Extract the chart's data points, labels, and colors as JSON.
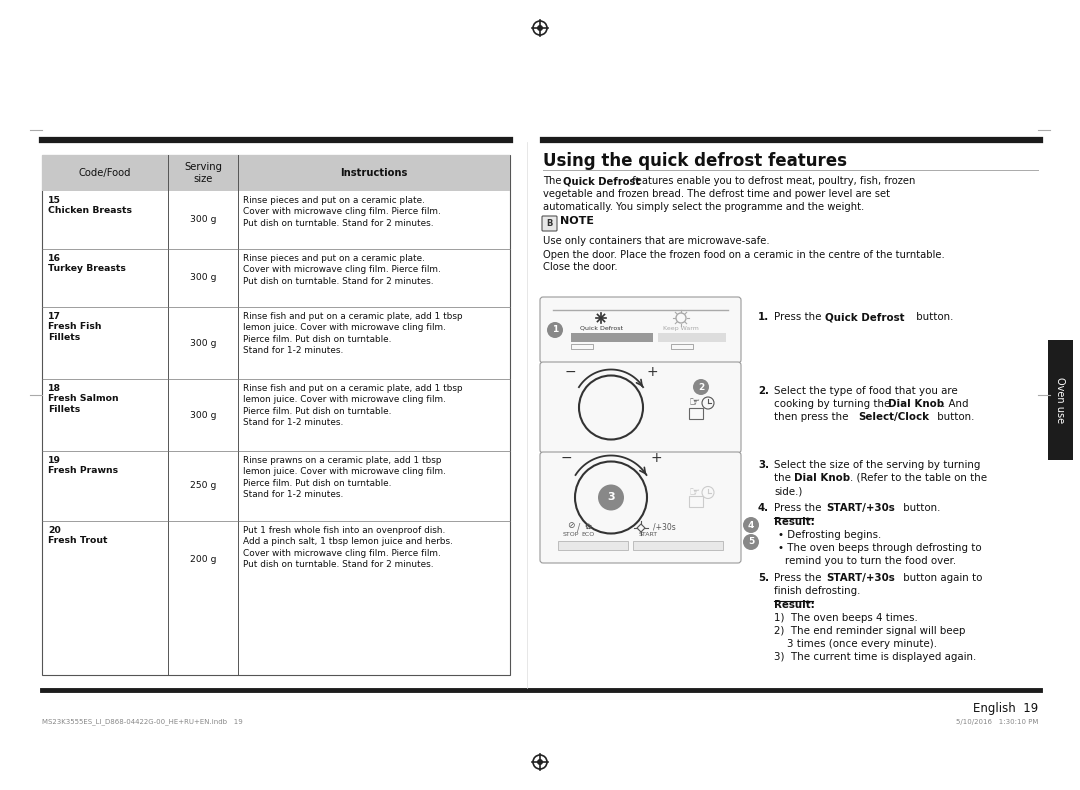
{
  "title": "Using the quick defrost features",
  "bg_color": "#ffffff",
  "table_header_bg": "#c8c8c8",
  "table_rows": [
    {
      "code": "15\nChicken Breasts",
      "serving": "300 g",
      "instructions": "Rinse pieces and put on a ceramic plate.\nCover with microwave cling film. Pierce film.\nPut dish on turntable. Stand for 2 minutes."
    },
    {
      "code": "16\nTurkey Breasts",
      "serving": "300 g",
      "instructions": "Rinse pieces and put on a ceramic plate.\nCover with microwave cling film. Pierce film.\nPut dish on turntable. Stand for 2 minutes."
    },
    {
      "code": "17\nFresh Fish\nFillets",
      "serving": "300 g",
      "instructions": "Rinse fish and put on a ceramic plate, add 1 tbsp\nlemon juice. Cover with microwave cling film.\nPierce film. Put dish on turntable.\nStand for 1-2 minutes."
    },
    {
      "code": "18\nFresh Salmon\nFillets",
      "serving": "300 g",
      "instructions": "Rinse fish and put on a ceramic plate, add 1 tbsp\nlemon juice. Cover with microwave cling film.\nPierce film. Put dish on turntable.\nStand for 1-2 minutes."
    },
    {
      "code": "19\nFresh Prawns",
      "serving": "250 g",
      "instructions": "Rinse prawns on a ceramic plate, add 1 tbsp\nlemon juice. Cover with microwave cling film.\nPierce film. Put dish on turntable.\nStand for 1-2 minutes."
    },
    {
      "code": "20\nFresh Trout",
      "serving": "200 g",
      "instructions": "Put 1 fresh whole fish into an ovenproof dish.\nAdd a pinch salt, 1 tbsp lemon juice and herbs.\nCover with microwave cling film. Pierce film.\nPut dish on turntable. Stand for 2 minutes."
    }
  ],
  "footer_left": "MS23K3555ES_LI_D868-04422G-00_HE+RU+EN.indb   19",
  "footer_right": "5/10/2016   1:30:10 PM",
  "page_num": "English  19"
}
